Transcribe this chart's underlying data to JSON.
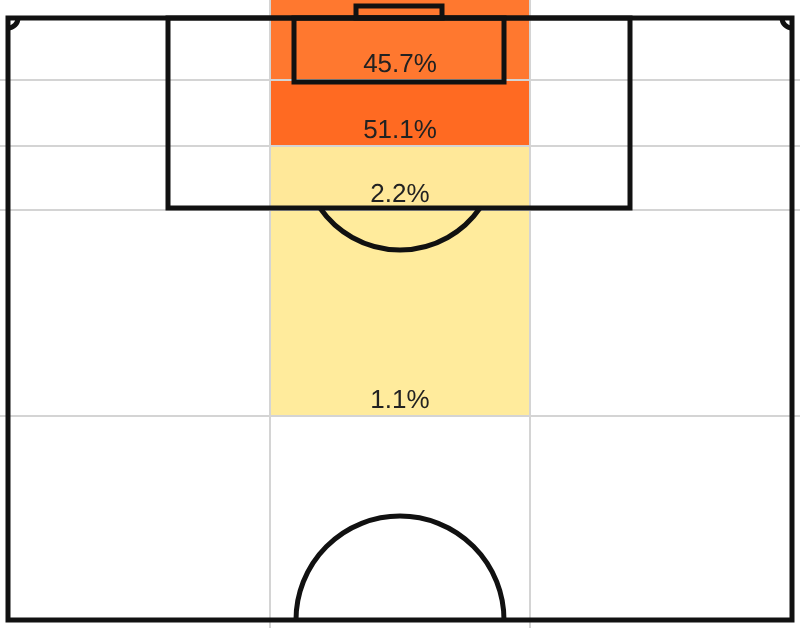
{
  "chart_data": {
    "type": "other",
    "categories": [
      null,
      null,
      null,
      null
    ],
    "values": [
      45.7,
      51.1,
      2.2,
      1.1
    ],
    "value_labels": [
      "45.7%",
      "51.1%",
      "2.2%",
      "1.1%"
    ]
  }
}
